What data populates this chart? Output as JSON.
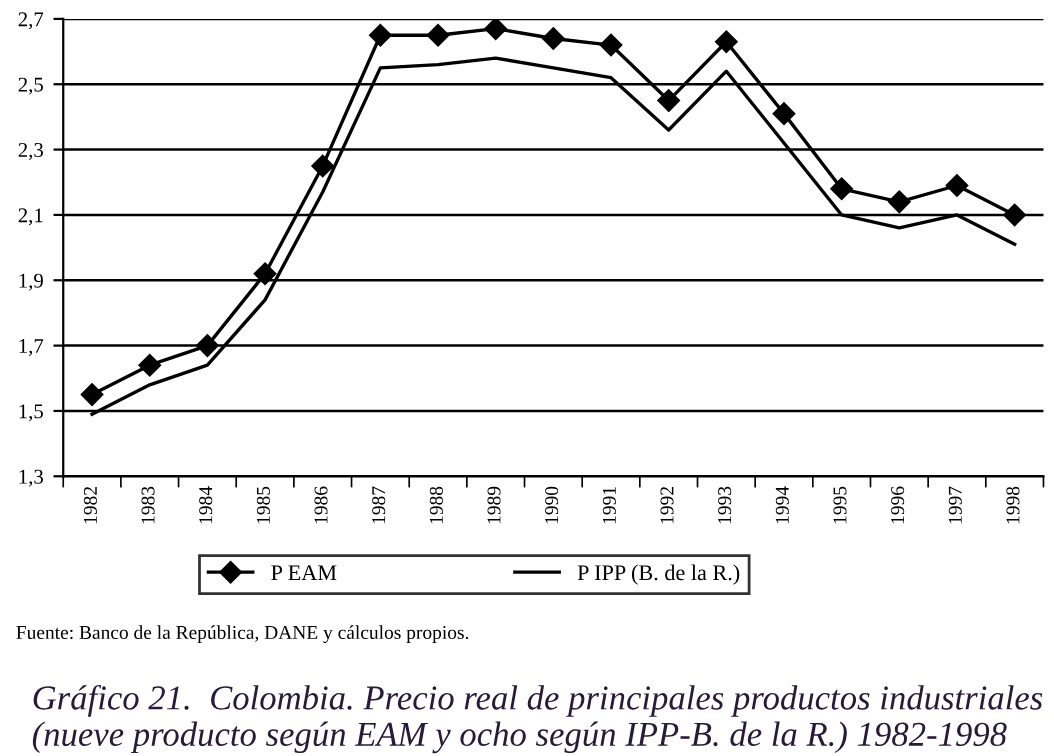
{
  "chart_data": {
    "type": "line",
    "title": "Gráfico 21.  Colombia. Precio real de principales productos industriales (nueve producto según EAM y ocho según IPP-B. de la R.) 1982-1998",
    "categories": [
      "1982",
      "1983",
      "1984",
      "1985",
      "1986",
      "1987",
      "1988",
      "1989",
      "1990",
      "1991",
      "1992",
      "1993",
      "1994",
      "1995",
      "1996",
      "1997",
      "1998"
    ],
    "series": [
      {
        "name": "P EAM",
        "color": "#000000",
        "marker": "diamond",
        "values": [
          1.55,
          1.64,
          1.7,
          1.92,
          2.25,
          2.65,
          2.65,
          2.67,
          2.64,
          2.62,
          2.45,
          2.63,
          2.41,
          2.18,
          2.14,
          2.19,
          2.1
        ]
      },
      {
        "name": "P IPP (B. de la R.)",
        "color": "#000000",
        "marker": "none",
        "values": [
          1.49,
          1.58,
          1.64,
          1.84,
          2.17,
          2.55,
          2.56,
          2.58,
          2.55,
          2.52,
          2.36,
          2.54,
          2.32,
          2.1,
          2.06,
          2.1,
          2.01
        ]
      }
    ],
    "ylim": [
      1.3,
      2.7
    ],
    "yticks": [
      {
        "value": 1.3,
        "label": "1,3"
      },
      {
        "value": 1.5,
        "label": "1,5"
      },
      {
        "value": 1.7,
        "label": "1,7"
      },
      {
        "value": 1.9,
        "label": "1,9"
      },
      {
        "value": 2.1,
        "label": "2,1"
      },
      {
        "value": 2.3,
        "label": "2,3"
      },
      {
        "value": 2.5,
        "label": "2,5"
      },
      {
        "value": 2.7,
        "label": "2,7"
      }
    ],
    "grid": "y",
    "legend": "bottom",
    "line_style": "solid",
    "annotations": [
      "Fuente: Banco de la República, DANE y cálculos propios."
    ]
  }
}
